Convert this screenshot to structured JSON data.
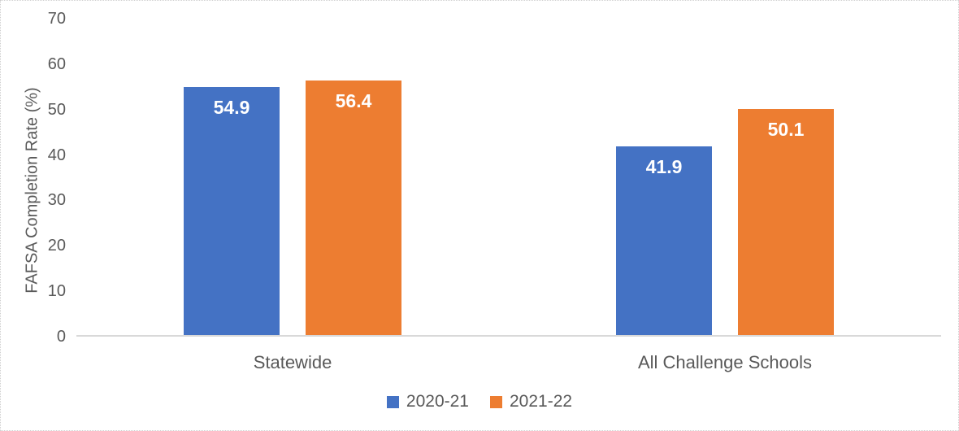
{
  "chart_data": {
    "type": "bar",
    "ylabel": "FAFSA Completion Rate (%)",
    "xlabel": "",
    "categories": [
      "Statewide",
      "All Challenge Schools"
    ],
    "series": [
      {
        "name": "2020-21",
        "color": "#4472C4",
        "values": [
          54.9,
          41.9
        ],
        "labels": [
          "54.9",
          "41.9"
        ]
      },
      {
        "name": "2021-22",
        "color": "#ED7D31",
        "values": [
          56.4,
          50.1
        ],
        "labels": [
          "56.4",
          "50.1"
        ]
      }
    ],
    "ylim": [
      0,
      70
    ],
    "yticks": [
      0,
      10,
      20,
      30,
      40,
      50,
      60,
      70
    ],
    "grid": false,
    "legend_position": "bottom",
    "axis_color": "#d9d9d9",
    "text_color": "#595959",
    "data_label_color": "#ffffff"
  }
}
